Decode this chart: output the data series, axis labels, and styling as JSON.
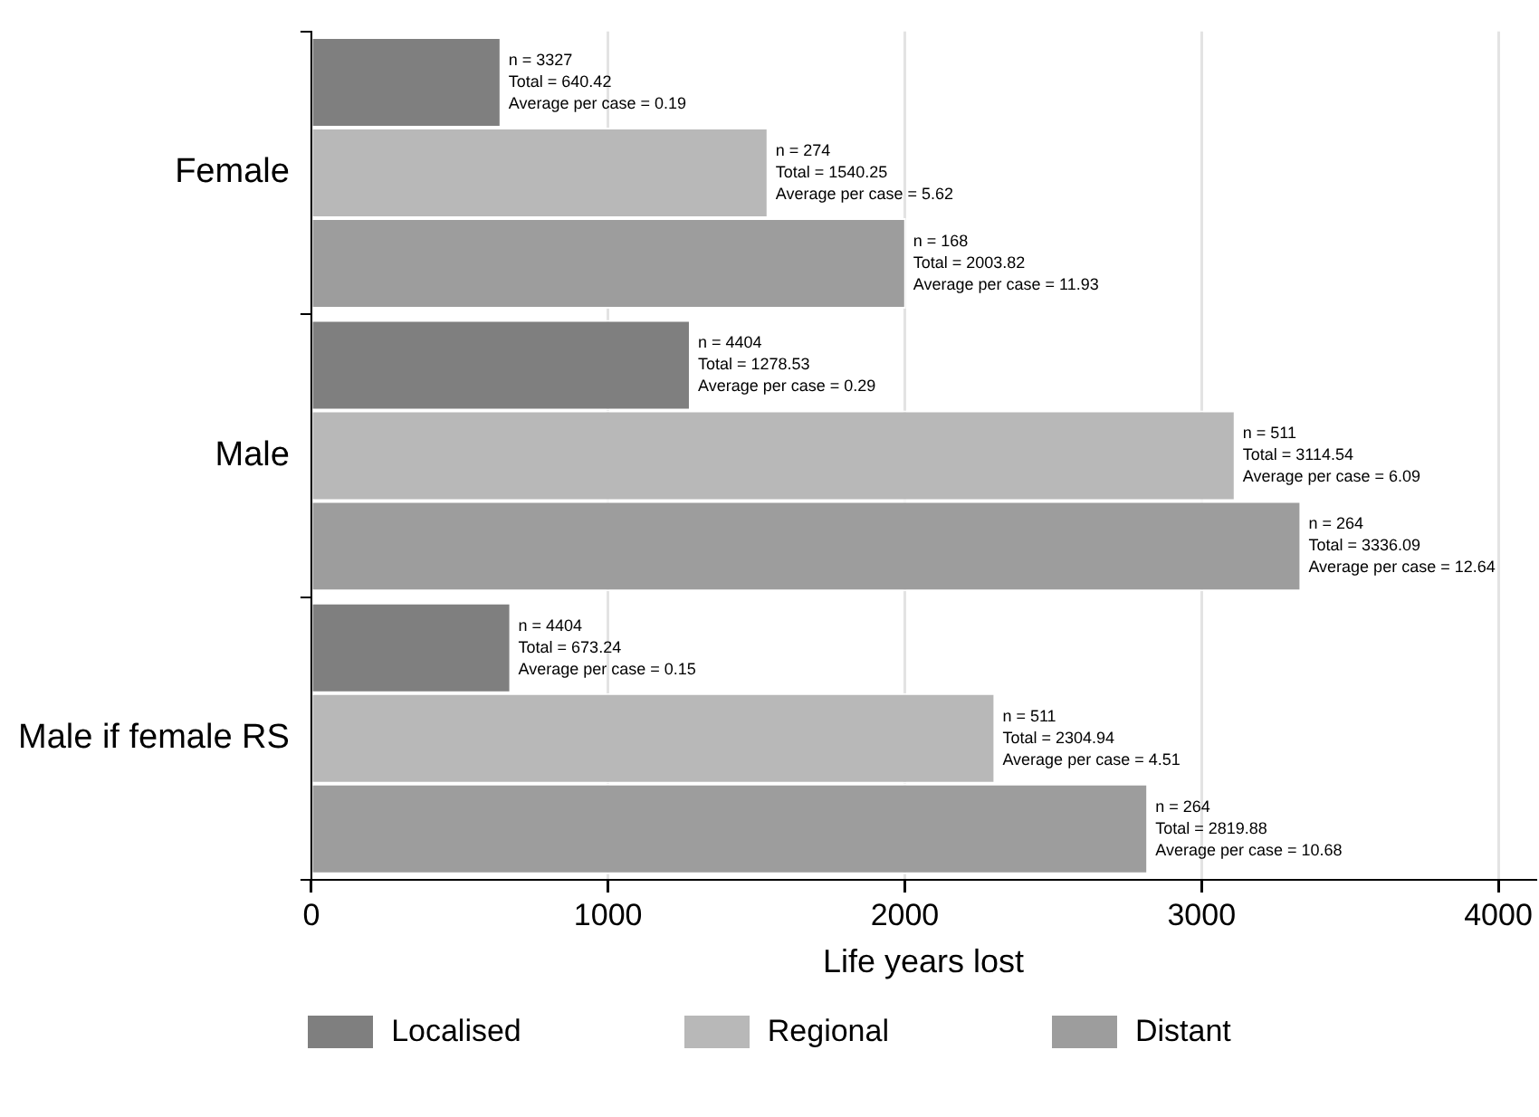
{
  "chart_data": {
    "type": "bar",
    "orientation": "horizontal",
    "xlabel": "Life years lost",
    "categories": [
      "Female",
      "Male",
      "Male if female RS"
    ],
    "series": [
      {
        "name": "Localised",
        "color": "#7f7f7f",
        "values": [
          640.42,
          1278.53,
          673.24
        ],
        "value_labels": [
          "n = 3327\nTotal = 640.42\nAverage per case = 0.19",
          "n = 4404\nTotal = 1278.53\nAverage per case = 0.29",
          "n = 4404\nTotal = 673.24\nAverage per case = 0.15"
        ]
      },
      {
        "name": "Regional",
        "color": "#b8b8b8",
        "values": [
          1540.25,
          3114.54,
          2304.94
        ],
        "value_labels": [
          "n = 274\nTotal = 1540.25\nAverage per case = 5.62",
          "n = 511\nTotal = 3114.54\nAverage per case = 6.09",
          "n = 511\nTotal = 2304.94\nAverage per case = 4.51"
        ]
      },
      {
        "name": "Distant",
        "color": "#9d9d9d",
        "values": [
          2003.82,
          3336.09,
          2819.88
        ],
        "value_labels": [
          "n = 168\nTotal = 2003.82\nAverage per case = 11.93",
          "n = 264\nTotal = 3336.09\nAverage per case = 12.64",
          "n = 264\nTotal = 2819.88\nAverage per case = 10.68"
        ]
      }
    ],
    "xlim": [
      0,
      4125
    ],
    "xticks": [
      0,
      1000,
      2000,
      3000,
      4000
    ],
    "grid": "x",
    "legend": "bottom"
  }
}
